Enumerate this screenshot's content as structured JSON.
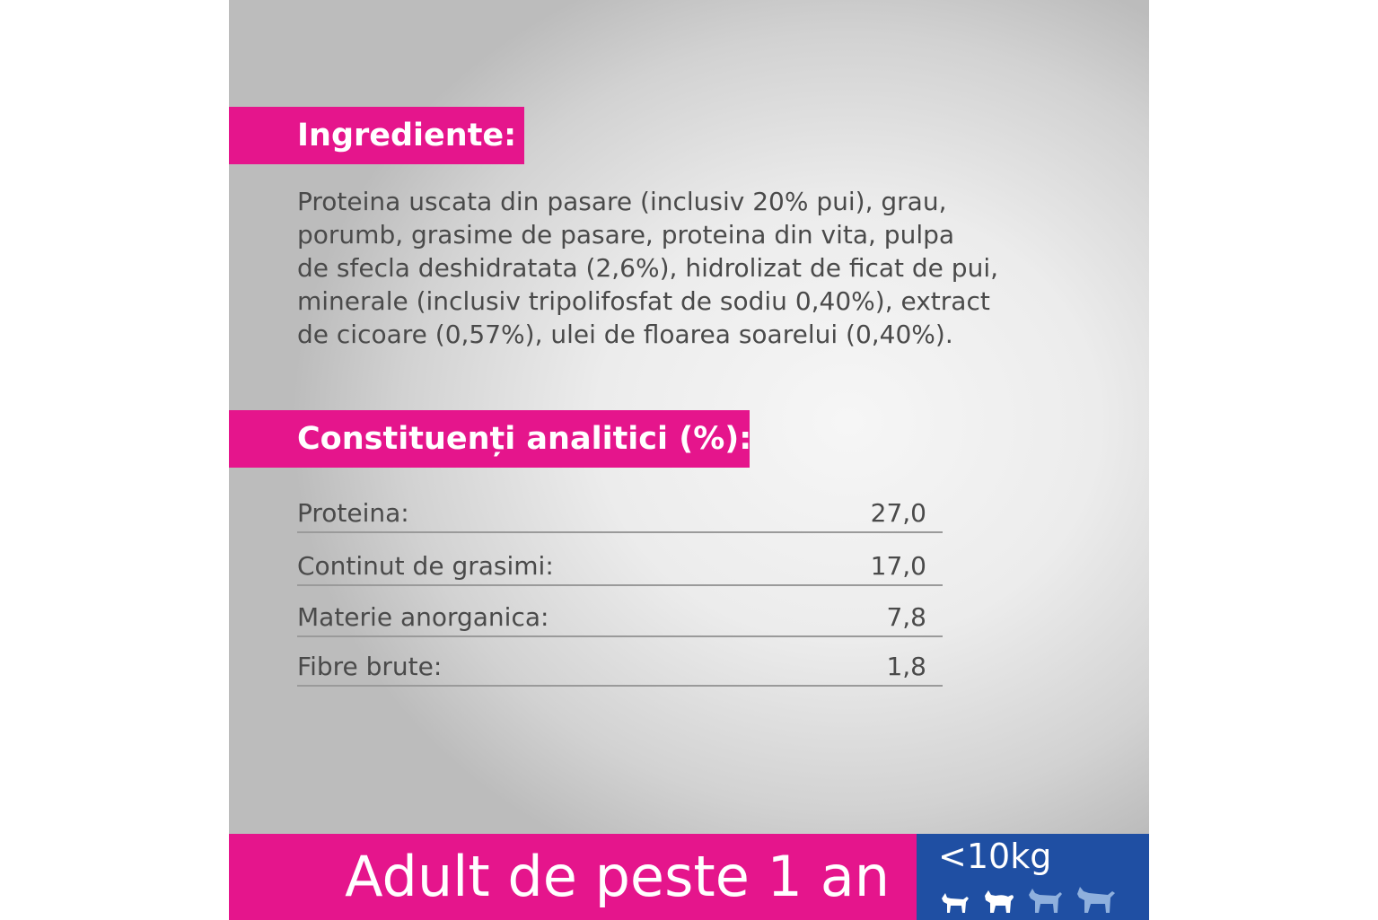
{
  "ingredients": {
    "heading": "Ingrediente:",
    "lines": [
      "Proteina uscata din pasare (inclusiv 20% pui), grau,",
      "porumb, grasime de pasare, proteina din vita, pulpa",
      "de sfecla deshidratata (2,6%), hidrolizat de ficat de pui,",
      "minerale (inclusiv tripolifosfat de sodiu 0,40%), extract",
      "de cicoare (0,57%), ulei de floarea soarelui (0,40%)."
    ]
  },
  "analytical": {
    "heading": "Constituenți analitici (%):",
    "rows": [
      {
        "label": "Proteina:",
        "value": "27,0"
      },
      {
        "label": "Continut de grasimi:",
        "value": "17,0"
      },
      {
        "label": "Materie anorganica:",
        "value": "7,8"
      },
      {
        "label": "Fibre brute:",
        "value": "1,8"
      }
    ]
  },
  "footer": {
    "age": "Adult de peste 1 an",
    "weight": "<10kg",
    "dog_icons": [
      {
        "icon": "small-dog-icon",
        "highlighted": true
      },
      {
        "icon": "fluffy-dog-icon",
        "highlighted": true
      },
      {
        "icon": "medium-dog-icon",
        "highlighted": false
      },
      {
        "icon": "large-dog-icon",
        "highlighted": false
      }
    ]
  },
  "colors": {
    "accent_pink": "#e5158c",
    "accent_blue": "#1f4fa3",
    "text": "#4a4a4a",
    "icon_dim": "#8fb0dd"
  }
}
